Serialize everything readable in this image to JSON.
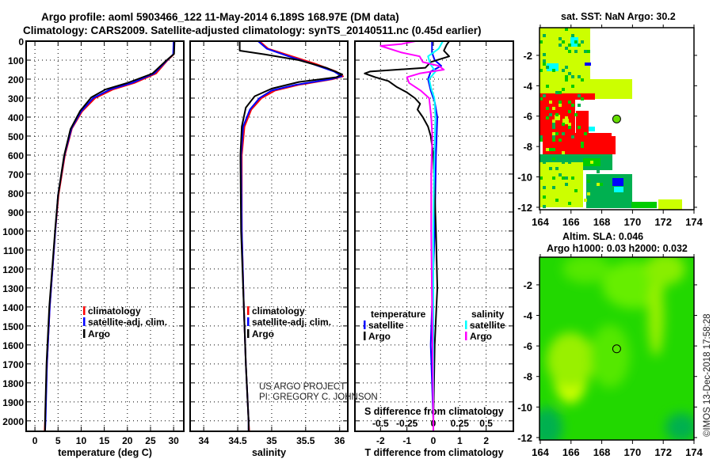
{
  "header": {
    "title_line1": "Argo profile: aoml 5903466_122 11-May-2014 6.189S 168.97E (DM data)",
    "title_line2": "Climatology: CARS2009. Satellite-adjusted climatology: synTS_20140511.nc (0.45d earlier)"
  },
  "colors": {
    "climatology": "#ff0000",
    "satellite": "#0000ff",
    "argo": "#000000",
    "sal_satellite": "#00ffff",
    "sal_argo": "#ff00ff"
  },
  "credits": {
    "project": "US ARGO PROJECT",
    "pi": "PI: GREGORY C. JOHNSON",
    "stamp": "©IMOS 13-Dec-2018 17:58:28"
  },
  "chart_data": [
    {
      "type": "line",
      "name": "temperature-profile",
      "xlabel": "temperature (deg C)",
      "ylabel": "",
      "xlim": [
        -1.9,
        32.2
      ],
      "ylim": [
        2055,
        0
      ],
      "xticks": [
        0,
        5,
        10,
        15,
        20,
        25,
        30
      ],
      "yticks": [
        0,
        100,
        200,
        300,
        400,
        500,
        600,
        700,
        800,
        900,
        1000,
        1100,
        1200,
        1300,
        1400,
        1500,
        1600,
        1700,
        1800,
        1900,
        2000
      ],
      "grid": true,
      "legend": [
        "climatology",
        "satellite-adj. clim.",
        "Argo"
      ],
      "legend_position": "lower-right",
      "series": [
        {
          "name": "climatology",
          "color": "#ff0000",
          "depth": [
            0,
            70,
            100,
            170,
            220,
            255,
            300,
            370,
            460,
            600,
            810,
            1000,
            1400,
            1700,
            2000,
            2055
          ],
          "values": [
            30.1,
            30.0,
            28.7,
            26.2,
            21.5,
            16.8,
            13.0,
            10.2,
            8.0,
            6.5,
            5.1,
            4.4,
            3.2,
            2.6,
            2.2,
            2.1
          ]
        },
        {
          "name": "satellite-adj. clim.",
          "color": "#0000ff",
          "depth": [
            0,
            70,
            100,
            170,
            220,
            255,
            300,
            370,
            460,
            600,
            810,
            1000,
            1400,
            1700,
            2000,
            2055
          ],
          "values": [
            30.0,
            29.9,
            28.6,
            25.8,
            21.0,
            16.2,
            12.6,
            10.0,
            7.9,
            6.4,
            5.0,
            4.4,
            3.2,
            2.6,
            2.3,
            2.2
          ]
        },
        {
          "name": "Argo",
          "color": "#000000",
          "depth": [
            0,
            67,
            100,
            171,
            221,
            254,
            296,
            367,
            463,
            603,
            812,
            983,
            1400,
            1700,
            2000,
            2055
          ],
          "values": [
            30.2,
            30.1,
            28.5,
            25.4,
            19.9,
            15.3,
            12.2,
            9.8,
            7.7,
            6.3,
            5.0,
            4.4,
            3.1,
            2.5,
            2.2,
            2.2
          ]
        }
      ]
    },
    {
      "type": "line",
      "name": "salinity-profile",
      "xlabel": "salinity",
      "xlim": [
        33.8,
        36.12
      ],
      "ylim": [
        2055,
        0
      ],
      "xticks": [
        34,
        34.5,
        35,
        35.5,
        36
      ],
      "xtick_labels": [
        "34",
        "34.5",
        "35",
        "35.5",
        "36"
      ],
      "grid": true,
      "legend": [
        "climatology",
        "satellite-adj. clim.",
        "Argo"
      ],
      "legend_position": "lower-right",
      "series": [
        {
          "name": "climatology",
          "color": "#ff0000",
          "depth": [
            0,
            40,
            80,
            120,
            160,
            185,
            200,
            230,
            260,
            300,
            360,
            450,
            600,
            1000,
            1400,
            1700,
            2000,
            2055
          ],
          "values": [
            34.82,
            34.95,
            35.3,
            35.65,
            35.95,
            36.05,
            35.9,
            35.4,
            35.05,
            34.85,
            34.7,
            34.6,
            34.56,
            34.56,
            34.59,
            34.62,
            34.66,
            34.67
          ]
        },
        {
          "name": "satellite-adj. clim.",
          "color": "#0000ff",
          "depth": [
            0,
            40,
            80,
            120,
            160,
            185,
            200,
            230,
            260,
            300,
            360,
            450,
            600,
            1000,
            1400,
            1700,
            2000,
            2055
          ],
          "values": [
            34.8,
            34.93,
            35.25,
            35.6,
            35.92,
            36.03,
            35.87,
            35.35,
            35.0,
            34.82,
            34.68,
            34.58,
            34.55,
            34.56,
            34.59,
            34.62,
            34.66,
            34.66
          ]
        },
        {
          "name": "Argo",
          "color": "#000000",
          "depth": [
            0,
            50,
            70,
            100,
            140,
            175,
            190,
            215,
            250,
            290,
            350,
            450,
            600,
            1000,
            1400,
            1700,
            2000,
            2055
          ],
          "values": [
            34.53,
            34.53,
            34.9,
            35.4,
            35.8,
            36.04,
            35.95,
            35.4,
            35.0,
            34.75,
            34.62,
            34.56,
            34.54,
            34.55,
            34.59,
            34.62,
            34.66,
            34.66
          ]
        }
      ]
    },
    {
      "type": "line",
      "name": "difference-profile",
      "xlabel": "T difference from climatology",
      "x2label": "S difference from climatology",
      "xlim": [
        -2.97,
        3.03
      ],
      "x2lim": [
        -0.743,
        0.758
      ],
      "ylim": [
        2055,
        0
      ],
      "xticks": [
        -2,
        -1,
        0,
        1,
        2
      ],
      "x2ticks": [
        -0.5,
        -0.25,
        0,
        0.25,
        0.5
      ],
      "x2tick_labels": [
        "-0.5",
        "-0.25",
        "0",
        "0.25",
        "0.5"
      ],
      "grid": true,
      "legend_temperature_title": "temperature",
      "legend_salinity_title": "salinity",
      "legend": [
        "satellite",
        "Argo",
        "satellite",
        "Argo"
      ],
      "legend_position": "lower",
      "series": [
        {
          "name": "temperature satellite",
          "axis": "T",
          "color": "#0000ff",
          "depth": [
            0,
            60,
            100,
            130,
            160,
            200,
            260,
            320,
            400,
            600,
            1000,
            1400,
            1600,
            2000,
            2055
          ],
          "values": [
            -0.05,
            -0.05,
            0.05,
            0.3,
            -0.1,
            -0.2,
            -0.1,
            0.05,
            0.15,
            0.1,
            0.05,
            -0.05,
            -0.1,
            0,
            0
          ]
        },
        {
          "name": "temperature Argo",
          "axis": "T",
          "color": "#000000",
          "depth": [
            0,
            20,
            50,
            80,
            110,
            140,
            160,
            170,
            190,
            210,
            240,
            270,
            300,
            330,
            360,
            400,
            450,
            500,
            600,
            800,
            1000,
            1300,
            1600,
            2000,
            2055
          ],
          "values": [
            0.6,
            0.5,
            0.4,
            0.6,
            -0.1,
            -0.3,
            -2.4,
            -2.6,
            -2.2,
            -1.7,
            -1.4,
            -1.0,
            -0.7,
            -0.5,
            -0.6,
            -0.4,
            -0.2,
            -0.1,
            0,
            0.05,
            0.1,
            0.15,
            0.05,
            0,
            0
          ]
        },
        {
          "name": "salinity satellite",
          "axis": "S",
          "color": "#00ffff",
          "depth": [
            0,
            40,
            80,
            120,
            160,
            200,
            250,
            300,
            400,
            600,
            1000,
            1500,
            2000,
            2055
          ],
          "values": [
            0.09,
            0.05,
            -0.05,
            -0.03,
            0.02,
            -0.04,
            -0.02,
            0.01,
            0.02,
            0.01,
            0,
            0,
            0,
            0
          ]
        },
        {
          "name": "salinity Argo",
          "axis": "S",
          "color": "#ff00ff",
          "depth": [
            0,
            15,
            25,
            60,
            80,
            110,
            130,
            150,
            170,
            190,
            220,
            260,
            300,
            400,
            500,
            700,
            1000,
            1500,
            2000,
            2055
          ],
          "values": [
            -0.17,
            -0.3,
            -0.5,
            -0.3,
            -0.13,
            -0.1,
            0.05,
            0.1,
            -0.13,
            -0.25,
            -0.23,
            -0.12,
            -0.04,
            -0.02,
            -0.01,
            -0.02,
            -0.02,
            -0.01,
            0,
            0
          ]
        }
      ]
    },
    {
      "type": "heatmap",
      "name": "sst-map",
      "title": "sat. SST: NaN Argo: 30.2",
      "xlim": [
        163.95,
        174.0
      ],
      "ylim": [
        -12.16,
        -0.18
      ],
      "xticks": [
        164,
        166,
        168,
        170,
        172,
        174
      ],
      "yticks": [
        -2,
        -4,
        -6,
        -8,
        -10,
        -12
      ],
      "argo_position": {
        "lon": 168.97,
        "lat": -6.189
      }
    },
    {
      "type": "heatmap",
      "name": "sla-map",
      "title": "Altim. SLA: 0.046",
      "subtitle": "Argo h1000: 0.03 h2000: 0.032",
      "xlim": [
        163.95,
        174.0
      ],
      "ylim": [
        -12.16,
        -0.19
      ],
      "xticks": [
        164,
        166,
        168,
        170,
        172,
        174
      ],
      "yticks": [
        -2,
        -4,
        -6,
        -8,
        -10,
        -12
      ],
      "argo_position": {
        "lon": 168.97,
        "lat": -6.189
      }
    }
  ]
}
